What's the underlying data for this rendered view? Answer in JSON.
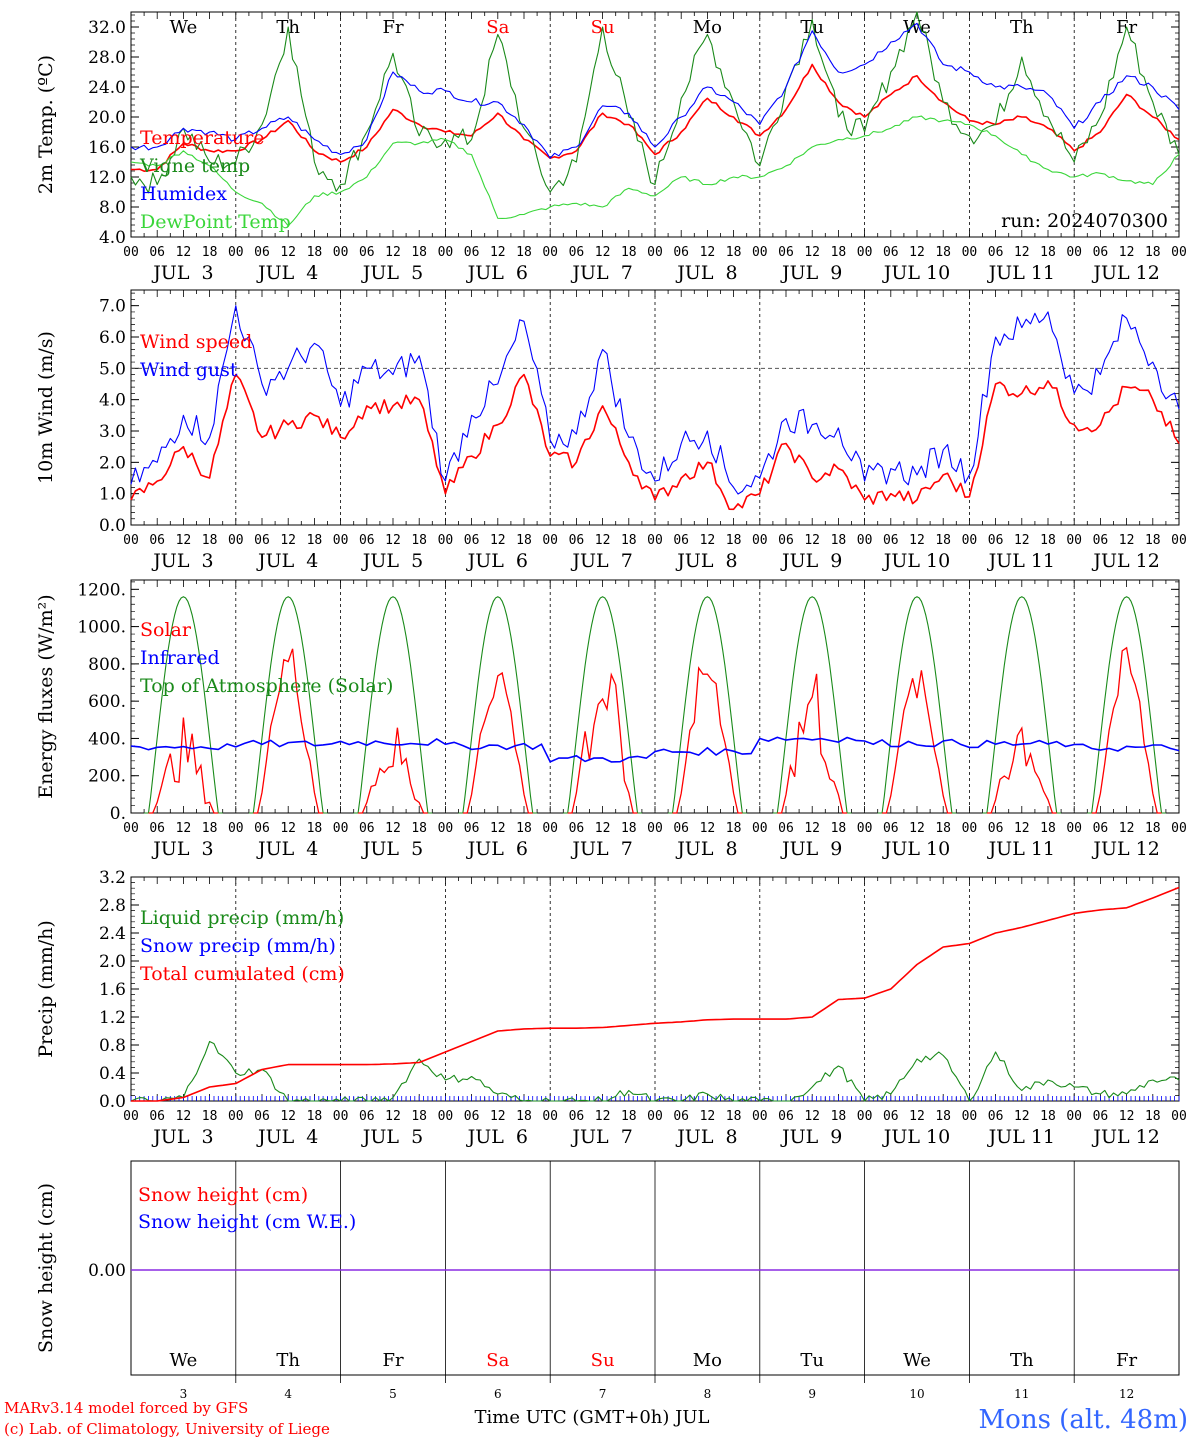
{
  "colors": {
    "red": "#ff0000",
    "darkgreen": "#1a8a1a",
    "green": "#3ad63a",
    "blue": "#0000ff",
    "purple": "#8a2be2",
    "black": "#000000",
    "weekend": "#ff0000",
    "station": "#3366ff"
  },
  "chart_data": [
    {
      "type": "line",
      "ylabel": "2m Temp. (ºC)",
      "ylim": [
        4.0,
        34.0
      ],
      "y_ticks": [
        "4.0",
        "8.0",
        "12.0",
        "16.0",
        "20.0",
        "24.0",
        "28.0",
        "32.0"
      ],
      "x_tick_labels": [
        "00",
        "06",
        "12",
        "18",
        "00",
        "06",
        "12",
        "18",
        "00",
        "06",
        "12",
        "18",
        "00",
        "06",
        "12",
        "18",
        "00",
        "06",
        "12",
        "18",
        "00",
        "06",
        "12",
        "18",
        "00",
        "06",
        "12",
        "18",
        "00",
        "06",
        "12",
        "18",
        "00",
        "06",
        "12",
        "18",
        "00",
        "06",
        "12",
        "18",
        "00"
      ],
      "day_labels": [
        "JUL  3",
        "JUL  4",
        "JUL  5",
        "JUL  6",
        "JUL  7",
        "JUL  8",
        "JUL  9",
        "JUL 10",
        "JUL 11",
        "JUL 12"
      ],
      "weekday_labels": [
        "We",
        "Th",
        "Fr",
        "Sa",
        "Su",
        "Mo",
        "Tu",
        "We",
        "Th",
        "Fr"
      ],
      "weekend_days": [
        3,
        4
      ],
      "annotation": "run: 2024070300",
      "x": [
        0,
        6,
        12,
        18,
        24,
        30,
        36,
        42,
        48,
        54,
        60,
        66,
        72,
        78,
        84,
        90,
        96,
        102,
        108,
        114,
        120,
        126,
        132,
        138,
        144,
        150,
        156,
        162,
        168,
        174,
        180,
        186,
        192,
        198,
        204,
        210,
        216,
        222,
        228,
        234,
        240
      ],
      "series": [
        {
          "name": "Temperature",
          "color": "red",
          "values": [
            13.0,
            13.0,
            16.5,
            15.5,
            15.5,
            17.0,
            19.5,
            15.5,
            14.0,
            16.0,
            21.0,
            19.0,
            18.0,
            17.5,
            20.5,
            17.0,
            14.5,
            15.5,
            20.5,
            19.0,
            15.0,
            18.0,
            22.5,
            20.0,
            17.5,
            21.0,
            27.0,
            22.0,
            20.0,
            23.0,
            25.5,
            22.0,
            19.5,
            19.0,
            20.0,
            18.5,
            15.5,
            18.0,
            23.0,
            20.0,
            17.0
          ]
        },
        {
          "name": "Vigne temp",
          "color": "darkgreen",
          "values": [
            12.0,
            11.0,
            18.5,
            14.0,
            14.0,
            19.0,
            32.0,
            14.0,
            11.0,
            18.0,
            28.5,
            17.5,
            17.0,
            17.0,
            31.0,
            18.5,
            10.0,
            14.0,
            32.0,
            20.0,
            11.0,
            22.5,
            31.0,
            22.0,
            13.5,
            24.0,
            33.0,
            20.0,
            18.0,
            26.0,
            34.0,
            22.0,
            17.5,
            19.0,
            28.0,
            20.0,
            14.0,
            20.0,
            32.0,
            22.0,
            15.0
          ]
        },
        {
          "name": "Humidex",
          "color": "blue",
          "values": [
            16.0,
            16.0,
            18.5,
            18.0,
            17.0,
            18.5,
            20.0,
            17.0,
            15.0,
            17.0,
            26.0,
            23.5,
            23.5,
            22.0,
            22.0,
            19.0,
            14.5,
            16.0,
            21.5,
            20.5,
            16.0,
            20.0,
            24.0,
            22.0,
            19.0,
            24.0,
            31.5,
            26.0,
            27.0,
            30.0,
            32.5,
            27.0,
            26.0,
            24.0,
            24.0,
            23.0,
            18.5,
            22.0,
            25.5,
            24.0,
            21.0
          ]
        },
        {
          "name": "DewPoint Temp",
          "color": "green",
          "values": [
            14.0,
            13.5,
            15.5,
            13.5,
            10.0,
            8.5,
            5.5,
            9.5,
            10.0,
            12.0,
            16.5,
            16.5,
            17.0,
            15.0,
            6.5,
            7.0,
            8.0,
            8.5,
            8.0,
            10.5,
            9.5,
            12.0,
            11.0,
            12.0,
            12.0,
            13.5,
            16.0,
            17.0,
            17.5,
            18.5,
            20.0,
            19.5,
            19.0,
            17.5,
            15.0,
            13.0,
            12.0,
            12.5,
            11.5,
            11.0,
            15.0
          ]
        }
      ]
    },
    {
      "type": "line",
      "ylabel": "10m Wind (m/s)",
      "ylim": [
        0.0,
        7.5
      ],
      "y_ticks": [
        "0.0",
        "1.0",
        "2.0",
        "3.0",
        "4.0",
        "5.0",
        "6.0",
        "7.0"
      ],
      "x_tick_labels": [
        "00",
        "06",
        "12",
        "18",
        "00",
        "06",
        "12",
        "18",
        "00",
        "06",
        "12",
        "18",
        "00",
        "06",
        "12",
        "18",
        "00",
        "06",
        "12",
        "18",
        "00",
        "06",
        "12",
        "18",
        "00",
        "06",
        "12",
        "18",
        "00",
        "06",
        "12",
        "18",
        "00",
        "06",
        "12",
        "18",
        "00",
        "06",
        "12",
        "18",
        "00"
      ],
      "day_labels": [
        "JUL  3",
        "JUL  4",
        "JUL  5",
        "JUL  6",
        "JUL  7",
        "JUL  8",
        "JUL  9",
        "JUL 10",
        "JUL 11",
        "JUL 12"
      ],
      "reference_line": 5.0,
      "x": [
        0,
        6,
        12,
        18,
        24,
        30,
        36,
        42,
        48,
        54,
        60,
        66,
        72,
        78,
        84,
        90,
        96,
        102,
        108,
        114,
        120,
        126,
        132,
        138,
        144,
        150,
        156,
        162,
        168,
        174,
        180,
        186,
        192,
        198,
        204,
        210,
        216,
        222,
        228,
        234,
        240
      ],
      "series": [
        {
          "name": "Wind speed",
          "color": "red",
          "values": [
            0.8,
            1.4,
            2.5,
            1.5,
            4.8,
            2.8,
            3.2,
            3.5,
            2.8,
            3.8,
            3.8,
            4.0,
            1.0,
            2.2,
            3.2,
            4.8,
            2.2,
            2.0,
            3.8,
            2.0,
            0.8,
            1.5,
            2.0,
            0.5,
            1.0,
            2.6,
            1.5,
            1.8,
            0.8,
            1.0,
            0.8,
            1.6,
            0.9,
            4.5,
            4.2,
            4.6,
            3.2,
            3.2,
            4.4,
            4.0,
            2.6
          ]
        },
        {
          "name": "Wind gust",
          "color": "blue",
          "values": [
            1.3,
            2.0,
            3.5,
            2.8,
            7.0,
            4.5,
            5.0,
            5.8,
            3.8,
            5.0,
            4.8,
            5.4,
            1.4,
            3.5,
            4.5,
            6.5,
            2.7,
            2.9,
            5.6,
            2.8,
            1.4,
            2.6,
            3.0,
            1.2,
            1.5,
            3.4,
            3.2,
            3.1,
            1.4,
            1.8,
            1.6,
            2.4,
            1.6,
            6.0,
            6.3,
            6.8,
            4.2,
            4.8,
            6.6,
            5.2,
            3.7
          ]
        }
      ]
    },
    {
      "type": "line",
      "ylabel": "Energy fluxes (W/m²)",
      "ylim": [
        0,
        1250
      ],
      "y_ticks": [
        "0.",
        "200.",
        "400.",
        "600.",
        "800.",
        "1000.",
        "1200."
      ],
      "x_tick_labels": [
        "00",
        "06",
        "12",
        "18",
        "00",
        "06",
        "12",
        "18",
        "00",
        "06",
        "12",
        "18",
        "00",
        "06",
        "12",
        "18",
        "00",
        "06",
        "12",
        "18",
        "00",
        "06",
        "12",
        "18",
        "00",
        "06",
        "12",
        "18",
        "00",
        "06",
        "12",
        "18",
        "00",
        "06",
        "12",
        "18",
        "00",
        "06",
        "12",
        "18",
        "00"
      ],
      "day_labels": [
        "JUL  3",
        "JUL  4",
        "JUL  5",
        "JUL  6",
        "JUL  7",
        "JUL  8",
        "JUL  9",
        "JUL 10",
        "JUL 11",
        "JUL 12"
      ],
      "daily_peaks": {
        "toa": 1160,
        "solar": [
          470,
          900,
          460,
          820,
          890,
          860,
          810,
          760,
          580,
          860
        ],
        "infrared": [
          355,
          370,
          380,
          360,
          290,
          330,
          400,
          375,
          370,
          350
        ]
      },
      "series": [
        {
          "name": "Solar",
          "color": "red"
        },
        {
          "name": "Infrared",
          "color": "blue"
        },
        {
          "name": "Top of Atmosphere (Solar)",
          "color": "darkgreen"
        }
      ]
    },
    {
      "type": "line",
      "ylabel": "Precip (mm/h)",
      "ylim": [
        0.0,
        3.2
      ],
      "y_ticks": [
        "0.0",
        "0.4",
        "0.8",
        "1.2",
        "1.6",
        "2.0",
        "2.4",
        "2.8",
        "3.2"
      ],
      "x_tick_labels": [
        "00",
        "06",
        "12",
        "18",
        "00",
        "06",
        "12",
        "18",
        "00",
        "06",
        "12",
        "18",
        "00",
        "06",
        "12",
        "18",
        "00",
        "06",
        "12",
        "18",
        "00",
        "06",
        "12",
        "18",
        "00",
        "06",
        "12",
        "18",
        "00",
        "06",
        "12",
        "18",
        "00",
        "06",
        "12",
        "18",
        "00",
        "06",
        "12",
        "18",
        "00"
      ],
      "day_labels": [
        "JUL  3",
        "JUL  4",
        "JUL  5",
        "JUL  6",
        "JUL  7",
        "JUL  8",
        "JUL  9",
        "JUL 10",
        "JUL 11",
        "JUL 12"
      ],
      "x": [
        0,
        6,
        12,
        18,
        24,
        30,
        36,
        42,
        48,
        54,
        60,
        66,
        72,
        78,
        84,
        90,
        96,
        102,
        108,
        114,
        120,
        126,
        132,
        138,
        144,
        150,
        156,
        162,
        168,
        174,
        180,
        186,
        192,
        198,
        204,
        210,
        216,
        222,
        228,
        234,
        240
      ],
      "series": [
        {
          "name": "Liquid precip (mm/h)",
          "color": "darkgreen",
          "values": [
            0.0,
            0.0,
            0.05,
            0.85,
            0.4,
            0.45,
            0.0,
            0.0,
            0.0,
            0.0,
            0.05,
            0.6,
            0.3,
            0.35,
            0.1,
            0.0,
            0.0,
            0.0,
            0.0,
            0.15,
            0.0,
            0.0,
            0.1,
            0.0,
            0.0,
            0.0,
            0.2,
            0.5,
            0.0,
            0.1,
            0.6,
            0.65,
            0.0,
            0.7,
            0.15,
            0.3,
            0.2,
            0.1,
            0.1,
            0.3,
            0.3
          ]
        },
        {
          "name": "Snow precip (mm/h)",
          "color": "blue",
          "values": [
            0,
            0,
            0,
            0,
            0,
            0,
            0,
            0,
            0,
            0,
            0,
            0,
            0,
            0,
            0,
            0,
            0,
            0,
            0,
            0,
            0,
            0,
            0,
            0,
            0,
            0,
            0,
            0,
            0,
            0,
            0,
            0,
            0,
            0,
            0,
            0,
            0,
            0,
            0,
            0,
            0
          ]
        },
        {
          "name": "Total cumulated (cm)",
          "color": "red",
          "values": [
            0.0,
            0.0,
            0.05,
            0.2,
            0.25,
            0.45,
            0.52,
            0.52,
            0.52,
            0.52,
            0.53,
            0.55,
            0.7,
            0.85,
            1.0,
            1.03,
            1.04,
            1.04,
            1.05,
            1.08,
            1.11,
            1.13,
            1.16,
            1.17,
            1.17,
            1.17,
            1.2,
            1.45,
            1.47,
            1.6,
            1.95,
            2.2,
            2.25,
            2.4,
            2.48,
            2.58,
            2.68,
            2.73,
            2.76,
            2.9,
            3.05
          ]
        }
      ]
    },
    {
      "type": "line",
      "ylabel": "Snow height (cm)",
      "y_ticks": [
        "0.00"
      ],
      "weekday_labels": [
        "We",
        "Th",
        "Fr",
        "Sa",
        "Su",
        "Mo",
        "Tu",
        "We",
        "Th",
        "Fr"
      ],
      "weekend_days": [
        3,
        4
      ],
      "day_numbers": [
        "3",
        "4",
        "5",
        "6",
        "7",
        "8",
        "9",
        "10",
        "11",
        "12"
      ],
      "xlabel": "Time UTC (GMT+0h) JUL",
      "series": [
        {
          "name": "Snow height (cm)",
          "color": "red",
          "values": [
            0.0,
            0.0
          ]
        },
        {
          "name": "Snow height (cm W.E.)",
          "color": "blue",
          "values": [
            0.0,
            0.0
          ]
        }
      ]
    }
  ],
  "footer": {
    "credit_line1": "MARv3.14 model forced by GFS",
    "credit_line2": "(c) Lab. of Climatology, University of Liege",
    "station": "Mons (alt. 48m)"
  }
}
